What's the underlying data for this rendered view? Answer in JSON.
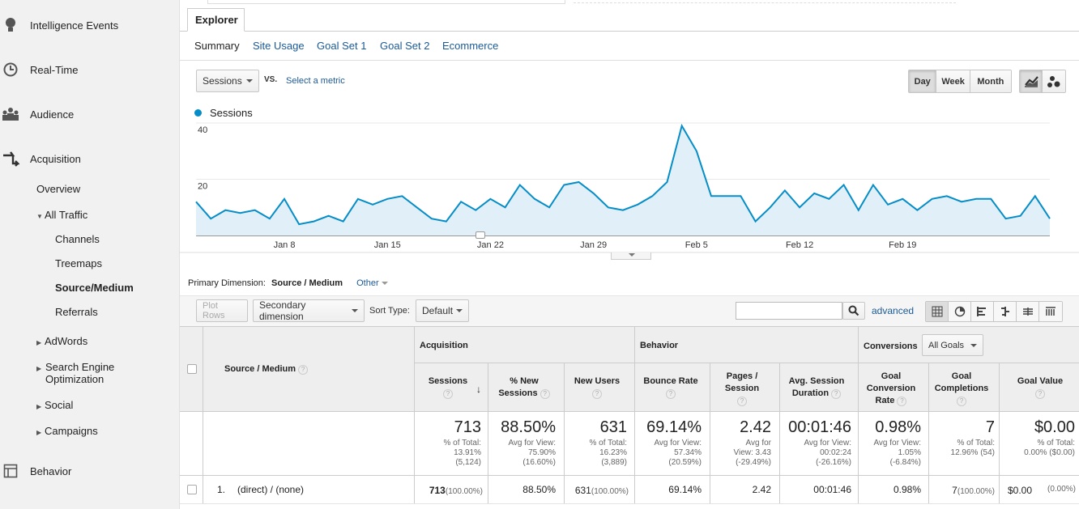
{
  "sidebar": {
    "items": [
      {
        "label": "Intelligence Events",
        "icon": "lightbulb-icon"
      },
      {
        "label": "Real-Time",
        "icon": "clock-icon"
      },
      {
        "label": "Audience",
        "icon": "people-icon"
      },
      {
        "label": "Acquisition",
        "icon": "arrows-icon"
      },
      {
        "label": "Behavior",
        "icon": "layout-icon"
      }
    ],
    "acquisition": {
      "overview": "Overview",
      "all_traffic": "All Traffic",
      "channels": "Channels",
      "treemaps": "Treemaps",
      "source_medium": "Source/Medium",
      "referrals": "Referrals",
      "adwords": "AdWords",
      "seo": "Search Engine Optimization",
      "social": "Social",
      "campaigns": "Campaigns"
    }
  },
  "explorer": {
    "tab": "Explorer",
    "subtabs": [
      "Summary",
      "Site Usage",
      "Goal Set 1",
      "Goal Set 2",
      "Ecommerce"
    ]
  },
  "controls": {
    "metric": "Sessions",
    "vs": "VS.",
    "select_metric": "Select a metric",
    "day": "Day",
    "week": "Week",
    "month": "Month"
  },
  "chart_data": {
    "type": "area",
    "series": [
      {
        "name": "Sessions",
        "color": "#058dc7"
      }
    ],
    "y_ticks": [
      "40",
      "20"
    ],
    "ylim": [
      0,
      40
    ],
    "x_tick_labels": [
      "Jan 8",
      "Jan 15",
      "Jan 22",
      "Jan 29",
      "Feb 5",
      "Feb 12",
      "Feb 19"
    ],
    "values": [
      12,
      6,
      9,
      8,
      9,
      6,
      13,
      4,
      5,
      7,
      5,
      13,
      11,
      13,
      14,
      10,
      6,
      5,
      12,
      9,
      13,
      10,
      18,
      13,
      10,
      18,
      19,
      15,
      10,
      9,
      11,
      14,
      19,
      39,
      30,
      14,
      14,
      14,
      5,
      10,
      16,
      10,
      15,
      13,
      18,
      9,
      18,
      11,
      13,
      9,
      13,
      14,
      12,
      13,
      13,
      6,
      7,
      14,
      6
    ]
  },
  "dimension": {
    "label": "Primary Dimension:",
    "value": "Source / Medium",
    "other": "Other"
  },
  "toolbar": {
    "plot_rows": "Plot Rows",
    "secondary": "Secondary dimension",
    "sort_type_label": "Sort Type:",
    "sort_type": "Default",
    "advanced": "advanced"
  },
  "table": {
    "dim_header": "Source / Medium",
    "groups": {
      "acquisition": "Acquisition",
      "behavior": "Behavior",
      "conversions": "Conversions",
      "all_goals": "All Goals"
    },
    "columns": {
      "sessions": "Sessions",
      "new_sessions": "% New Sessions",
      "new_users": "New Users",
      "bounce_rate": "Bounce Rate",
      "pages_session": "Pages / Session",
      "avg_duration": "Avg. Session Duration",
      "goal_conv": "Goal Conversion Rate",
      "goal_comp": "Goal Completions",
      "goal_value": "Goal Value"
    },
    "totals": {
      "sessions": {
        "big": "713",
        "sub": [
          "% of Total:",
          "13.91%",
          "(5,124)"
        ]
      },
      "new_sessions": {
        "big": "88.50%",
        "sub": [
          "Avg for View:",
          "75.90%",
          "(16.60%)"
        ]
      },
      "new_users": {
        "big": "631",
        "sub": [
          "% of Total:",
          "16.23%",
          "(3,889)"
        ]
      },
      "bounce_rate": {
        "big": "69.14%",
        "sub": [
          "Avg for View:",
          "57.34%",
          "(20.59%)"
        ]
      },
      "pages_session": {
        "big": "2.42",
        "sub": [
          "Avg for",
          "View: 3.43",
          "(-29.49%)"
        ]
      },
      "avg_duration": {
        "big": "00:01:46",
        "sub": [
          "Avg for View:",
          "00:02:24",
          "(-26.16%)"
        ]
      },
      "goal_conv": {
        "big": "0.98%",
        "sub": [
          "Avg for View:",
          "1.05%",
          "(-6.84%)"
        ]
      },
      "goal_comp": {
        "big": "7",
        "sub": [
          "% of Total:",
          "12.96% (54)"
        ]
      },
      "goal_value": {
        "big": "$0.00",
        "sub": [
          "% of Total:",
          "0.00% ($0.00)"
        ]
      }
    },
    "rows": [
      {
        "index": "1.",
        "source": "(direct) / (none)",
        "sessions": "713",
        "sessions_pct": "(100.00%)",
        "new_sessions": "88.50%",
        "new_users": "631",
        "new_users_pct": "(100.00%)",
        "bounce_rate": "69.14%",
        "pages_session": "2.42",
        "avg_duration": "00:01:46",
        "goal_conv": "0.98%",
        "goal_comp": "7",
        "goal_comp_pct": "(100.00%)",
        "goal_value": "$0.00",
        "goal_value_pct": "(0.00%)"
      }
    ]
  }
}
